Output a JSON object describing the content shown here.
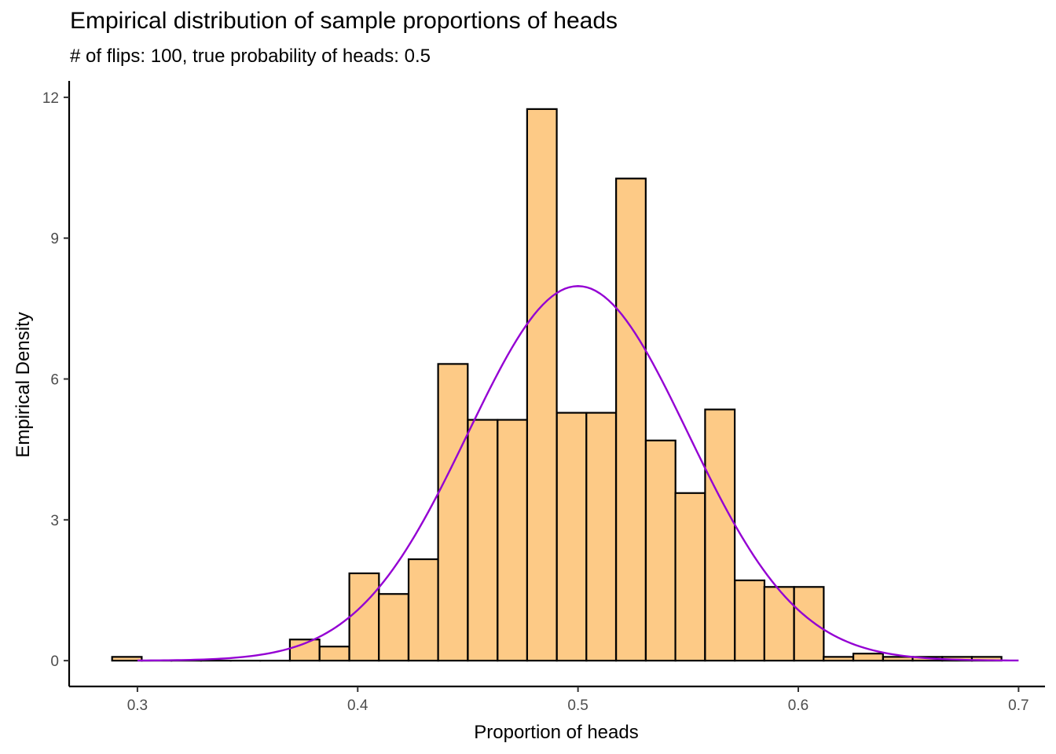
{
  "chart_data": {
    "type": "bar",
    "title": "Empirical distribution of sample proportions of heads",
    "subtitle": "# of flips: 100, true probability of heads: 0.5",
    "xlabel": "Proportion of heads",
    "ylabel": "Empirical Density",
    "xlim": [
      0.269,
      0.712
    ],
    "ylim": [
      -0.55,
      12.35
    ],
    "x_ticks": [
      0.3,
      0.4,
      0.5,
      0.6,
      0.7
    ],
    "x_tick_labels": [
      "0.3",
      "0.4",
      "0.5",
      "0.6",
      "0.7"
    ],
    "y_ticks": [
      0,
      3,
      6,
      9,
      12
    ],
    "y_tick_labels": [
      "0",
      "3",
      "6",
      "9",
      "12"
    ],
    "grid": false,
    "bin_width": 0.01345,
    "bin_starts": [
      0.2885,
      0.302,
      0.3154,
      0.3289,
      0.3423,
      0.3558,
      0.3692,
      0.3827,
      0.3962,
      0.4096,
      0.4231,
      0.4365,
      0.45,
      0.4635,
      0.4769,
      0.4904,
      0.5038,
      0.5173,
      0.5308,
      0.5442,
      0.5577,
      0.5712,
      0.5846,
      0.5981,
      0.6115,
      0.625,
      0.6385,
      0.6519,
      0.6654,
      0.6788
    ],
    "values": [
      0.08,
      0.0,
      0.0,
      0.0,
      0.0,
      0.0,
      0.45,
      0.3,
      1.86,
      1.42,
      2.16,
      6.32,
      5.13,
      5.13,
      11.75,
      5.28,
      5.28,
      10.27,
      4.69,
      3.57,
      5.35,
      1.71,
      1.57,
      1.57,
      0.08,
      0.15,
      0.08,
      0.08,
      0.08,
      0.08
    ],
    "density_curve": {
      "type": "line",
      "distribution": "normal",
      "mean": 0.5,
      "sd": 0.05,
      "x_range": [
        0.3,
        0.7
      ],
      "color": "#9400d3"
    },
    "bar_fill": "#fdca86",
    "bar_stroke": "#000000",
    "line_color": "#9400d3"
  }
}
